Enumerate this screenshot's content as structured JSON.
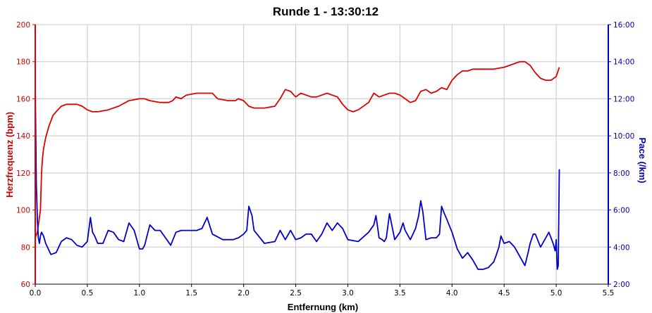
{
  "chart_data": {
    "type": "line",
    "title": "Runde 1 - 13:30:12",
    "xlabel": "Entfernung (km)",
    "xlim": [
      0,
      5.5
    ],
    "x_ticks": [
      "0.0",
      "0.5",
      "1.0",
      "1.5",
      "2.0",
      "2.5",
      "3.0",
      "3.5",
      "4.0",
      "4.5",
      "5.0",
      "5.5"
    ],
    "y_left": {
      "label": "Herzfrequenz (bpm)",
      "range": [
        60,
        200
      ],
      "ticks": [
        "60",
        "80",
        "100",
        "120",
        "140",
        "160",
        "180",
        "200"
      ],
      "color": "#e00000"
    },
    "y_right": {
      "label": "Pace (/km)",
      "range_minutes": [
        2,
        16
      ],
      "ticks": [
        "2:00",
        "4:00",
        "6:00",
        "8:00",
        "10:00",
        "12:00",
        "14:00",
        "16:00"
      ],
      "color": "#0000cc"
    },
    "grid": true,
    "series": [
      {
        "axis": "left",
        "color": "#e00000",
        "x": [
          0.0,
          0.02,
          0.04,
          0.05,
          0.06,
          0.07,
          0.08,
          0.1,
          0.13,
          0.17,
          0.2,
          0.25,
          0.3,
          0.35,
          0.4,
          0.45,
          0.5,
          0.55,
          0.6,
          0.7,
          0.8,
          0.9,
          1.0,
          1.05,
          1.1,
          1.2,
          1.28,
          1.32,
          1.35,
          1.4,
          1.45,
          1.55,
          1.65,
          1.7,
          1.75,
          1.85,
          1.92,
          1.95,
          2.0,
          2.05,
          2.1,
          2.2,
          2.3,
          2.35,
          2.4,
          2.45,
          2.5,
          2.55,
          2.6,
          2.65,
          2.7,
          2.75,
          2.8,
          2.85,
          2.9,
          2.95,
          3.0,
          3.05,
          3.1,
          3.2,
          3.25,
          3.3,
          3.35,
          3.4,
          3.45,
          3.5,
          3.55,
          3.6,
          3.65,
          3.7,
          3.75,
          3.8,
          3.85,
          3.9,
          3.95,
          4.0,
          4.05,
          4.1,
          4.15,
          4.2,
          4.3,
          4.4,
          4.5,
          4.55,
          4.6,
          4.65,
          4.7,
          4.75,
          4.8,
          4.85,
          4.9,
          4.95,
          5.0,
          5.03
        ],
        "values": [
          85,
          88,
          96,
          100,
          120,
          128,
          133,
          139,
          145,
          151,
          153,
          156,
          157,
          157,
          157,
          156,
          154,
          153,
          153,
          154,
          156,
          159,
          160,
          160,
          159,
          158,
          158,
          159,
          161,
          160,
          162,
          163,
          163,
          163,
          160,
          159,
          159,
          160,
          159,
          156,
          155,
          155,
          156,
          160,
          165,
          164,
          161,
          163,
          162,
          161,
          161,
          162,
          163,
          162,
          161,
          157,
          154,
          153,
          154,
          158,
          163,
          161,
          162,
          163,
          163,
          162,
          160,
          158,
          159,
          164,
          165,
          163,
          164,
          166,
          165,
          170,
          173,
          175,
          175,
          176,
          176,
          176,
          177,
          178,
          179,
          180,
          180,
          178,
          174,
          171,
          170,
          170,
          172,
          177
        ]
      },
      {
        "axis": "right",
        "color": "#0000cc",
        "x": [
          0.0,
          0.01,
          0.02,
          0.03,
          0.04,
          0.05,
          0.06,
          0.08,
          0.1,
          0.15,
          0.2,
          0.25,
          0.3,
          0.35,
          0.4,
          0.45,
          0.5,
          0.53,
          0.55,
          0.57,
          0.6,
          0.65,
          0.7,
          0.75,
          0.8,
          0.85,
          0.9,
          0.95,
          1.0,
          1.03,
          1.05,
          1.1,
          1.15,
          1.2,
          1.25,
          1.3,
          1.35,
          1.4,
          1.45,
          1.5,
          1.55,
          1.6,
          1.65,
          1.7,
          1.8,
          1.9,
          1.95,
          2.0,
          2.03,
          2.05,
          2.08,
          2.1,
          2.2,
          2.3,
          2.35,
          2.4,
          2.45,
          2.5,
          2.55,
          2.6,
          2.65,
          2.7,
          2.75,
          2.8,
          2.85,
          2.9,
          2.95,
          3.0,
          3.1,
          3.2,
          3.25,
          3.27,
          3.3,
          3.33,
          3.35,
          3.37,
          3.4,
          3.45,
          3.5,
          3.53,
          3.55,
          3.6,
          3.65,
          3.68,
          3.7,
          3.72,
          3.75,
          3.8,
          3.85,
          3.88,
          3.9,
          3.92,
          3.95,
          4.0,
          4.05,
          4.1,
          4.15,
          4.2,
          4.25,
          4.3,
          4.35,
          4.4,
          4.42,
          4.45,
          4.47,
          4.5,
          4.55,
          4.6,
          4.65,
          4.7,
          4.73,
          4.75,
          4.78,
          4.8,
          4.85,
          4.9,
          4.93,
          4.95,
          4.97,
          4.99,
          5.0,
          5.01,
          5.02,
          5.03
        ],
        "values": [
          12.8,
          7.5,
          5.5,
          4.5,
          4.2,
          4.6,
          4.8,
          4.6,
          4.2,
          3.6,
          3.7,
          4.3,
          4.5,
          4.4,
          4.1,
          4.0,
          4.3,
          5.6,
          4.8,
          4.6,
          4.2,
          4.2,
          4.9,
          4.8,
          4.4,
          4.3,
          5.3,
          4.9,
          3.9,
          3.9,
          4.1,
          5.2,
          4.9,
          4.9,
          4.5,
          4.1,
          4.8,
          4.9,
          4.9,
          4.9,
          4.9,
          5.0,
          5.6,
          4.7,
          4.4,
          4.4,
          4.5,
          4.7,
          4.9,
          6.2,
          5.7,
          4.9,
          4.2,
          4.3,
          4.9,
          4.4,
          4.9,
          4.4,
          4.5,
          4.7,
          4.7,
          4.3,
          4.7,
          5.3,
          4.9,
          5.3,
          5.0,
          4.4,
          4.3,
          4.8,
          5.2,
          5.7,
          4.5,
          4.4,
          4.3,
          4.5,
          5.8,
          4.4,
          4.8,
          5.3,
          4.9,
          4.4,
          5.0,
          5.7,
          6.5,
          5.9,
          4.4,
          4.5,
          4.5,
          4.7,
          6.2,
          5.9,
          5.5,
          4.8,
          3.9,
          3.4,
          3.7,
          3.3,
          2.8,
          2.8,
          2.9,
          3.2,
          3.5,
          4.0,
          4.6,
          4.2,
          4.3,
          4.0,
          3.5,
          3.0,
          3.7,
          4.2,
          4.7,
          4.7,
          4.0,
          4.5,
          4.8,
          4.5,
          4.2,
          3.8,
          4.4,
          2.8,
          3.0,
          8.2
        ]
      }
    ]
  }
}
